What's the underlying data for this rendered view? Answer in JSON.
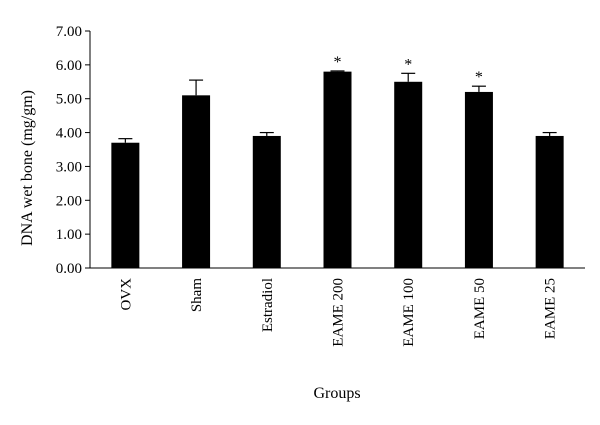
{
  "chart_data": {
    "type": "bar",
    "title": "",
    "xlabel": "Groups",
    "ylabel": "DNA wet bone (mg/gm)",
    "ylim": [
      0,
      7
    ],
    "yticks": [
      "0.00",
      "1.00",
      "2.00",
      "3.00",
      "4.00",
      "5.00",
      "6.00",
      "7.00"
    ],
    "categories": [
      "OVX",
      "Sham",
      "Estradiol",
      "EAME 200",
      "EAME 100",
      "EAME 50",
      "EAME 25"
    ],
    "values": [
      3.7,
      5.1,
      3.9,
      5.8,
      5.5,
      5.2,
      3.9
    ],
    "errors": [
      0.12,
      0.45,
      0.1,
      0.02,
      0.25,
      0.17,
      0.1
    ],
    "significance": [
      "",
      "",
      "",
      "*",
      "*",
      "*",
      ""
    ],
    "grid": false,
    "legend": "none",
    "bar_color": "#000000"
  }
}
